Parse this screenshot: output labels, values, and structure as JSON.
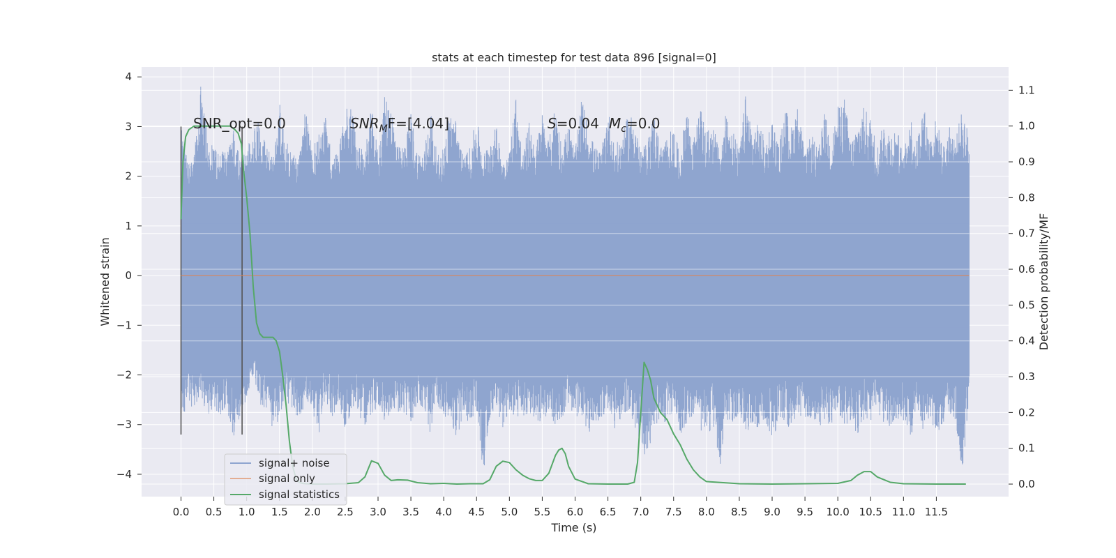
{
  "chart_data": {
    "type": "line",
    "title": "stats at each timestep for test data 896 [signal=0]",
    "xlabel": "Time (s)",
    "ylabel": "Whitened strain",
    "y2label": "Detection probability/MF",
    "xlim": [
      -0.6,
      12.6
    ],
    "ylim": [
      -4.45,
      4.2
    ],
    "y2lim": [
      -0.035,
      1.165
    ],
    "grid": true,
    "legend_position": "lower-left",
    "x_ticks": [
      "0.0",
      "0.5",
      "1.0",
      "1.5",
      "2.0",
      "2.5",
      "3.0",
      "3.5",
      "4.0",
      "4.5",
      "5.0",
      "5.5",
      "6.0",
      "6.5",
      "7.0",
      "7.5",
      "8.0",
      "8.5",
      "9.0",
      "9.5",
      "10.0",
      "10.5",
      "11.0",
      "11.5"
    ],
    "y_ticks": [
      "4",
      "3",
      "2",
      "1",
      "0",
      "−1",
      "−2",
      "−3",
      "−4"
    ],
    "y2_ticks": [
      "1.1",
      "1.0",
      "0.9",
      "0.8",
      "0.7",
      "0.6",
      "0.5",
      "0.4",
      "0.3",
      "0.2",
      "0.1",
      "0.0"
    ],
    "annotations": [
      "SNR_opt=0.0",
      "SNR",
      "M",
      "F=[4.04]",
      "S",
      "=0.04",
      "M",
      "c",
      "=0.0"
    ],
    "series": [
      {
        "name": "signal+ noise",
        "color": "#8fa5cf",
        "axis": "left",
        "t_start": 0.0,
        "t_end": 12.0,
        "envelope_upper": [
          3.0,
          2.3,
          2.4,
          3.85,
          2.9,
          2.6,
          2.5,
          2.6,
          3.0,
          2.4,
          2.5,
          3.0,
          3.2,
          2.6,
          2.4,
          3.5,
          2.7,
          2.5,
          2.4,
          3.4,
          2.6,
          2.9,
          3.2,
          2.4,
          2.5,
          3.5,
          3.4,
          2.6,
          2.5,
          3.4,
          2.5,
          3.6,
          3.5,
          2.6,
          2.6,
          3.3,
          2.5,
          2.5,
          3.4,
          2.4,
          2.6,
          3.4,
          3.1,
          2.4,
          2.6,
          3.2,
          2.4,
          2.8,
          3.0,
          2.4,
          2.5,
          3.7,
          2.4,
          3.1,
          2.6,
          3.3,
          2.7,
          3.5,
          2.6,
          3.1,
          2.5,
          3.6,
          3.0,
          2.6,
          2.5,
          3.4,
          2.6,
          2.8,
          3.2,
          3.3,
          2.5,
          2.7,
          3.3,
          2.6,
          2.8,
          3.0,
          2.4,
          3.5,
          2.7,
          3.4,
          2.9,
          3.1,
          2.5,
          3.3,
          3.0,
          2.5,
          3.7,
          2.9,
          3.1,
          2.7,
          3.2,
          2.6,
          3.4,
          3.0,
          3.5,
          2.4,
          2.9,
          2.5,
          3.3,
          2.7,
          3.4,
          3.6,
          2.7,
          3.1,
          3.4,
          3.2,
          2.6,
          3.1,
          2.9,
          3.0,
          2.4,
          3.3,
          2.7,
          3.5,
          2.8,
          3.2,
          2.6,
          3.0,
          2.8,
          3.4,
          2.8
        ],
        "envelope_lower": [
          -3.2,
          -2.5,
          -2.8,
          -2.3,
          -3.0,
          -2.6,
          -2.9,
          -2.7,
          -3.3,
          -2.8,
          -2.5,
          -2.0,
          -2.6,
          -2.8,
          -3.1,
          -2.9,
          -2.6,
          -2.7,
          -3.0,
          -2.5,
          -2.8,
          -3.2,
          -2.5,
          -2.9,
          -2.6,
          -3.1,
          -2.7,
          -2.8,
          -3.0,
          -2.9,
          -2.6,
          -3.0,
          -2.7,
          -2.8,
          -2.8,
          -3.0,
          -2.6,
          -2.9,
          -3.2,
          -2.6,
          -2.8,
          -3.0,
          -3.3,
          -2.8,
          -3.0,
          -2.7,
          -4.05,
          -2.9,
          -2.6,
          -3.1,
          -2.9,
          -2.8,
          -3.0,
          -2.8,
          -2.9,
          -3.0,
          -2.7,
          -3.1,
          -2.9,
          -2.6,
          -3.0,
          -2.8,
          -3.2,
          -3.0,
          -2.9,
          -2.7,
          -3.1,
          -2.9,
          -2.8,
          -3.0,
          -3.5,
          -3.8,
          -3.1,
          -2.9,
          -3.0,
          -2.7,
          -3.2,
          -3.0,
          -2.8,
          -3.1,
          -3.3,
          -3.0,
          -3.9,
          -2.9,
          -3.1,
          -2.8,
          -3.2,
          -3.0,
          -3.1,
          -2.9,
          -3.4,
          -3.0,
          -3.0,
          -3.1,
          -2.8,
          -3.0,
          -2.9,
          -3.2,
          -2.9,
          -3.1,
          -2.7,
          -3.1,
          -3.0,
          -3.2,
          -2.9,
          -3.0,
          -2.8,
          -3.0,
          -3.1,
          -2.9,
          -3.0,
          -3.3,
          -2.9,
          -3.1,
          -3.0,
          -3.2,
          -3.0,
          -2.8,
          -3.0,
          -4.05,
          -2.4
        ]
      },
      {
        "name": "signal only",
        "color": "#dd8452",
        "axis": "left",
        "x": [
          0.0,
          12.0
        ],
        "y": [
          0.0,
          0.0
        ]
      },
      {
        "name": "signal statistics",
        "color": "#55a868",
        "axis": "right",
        "x": [
          0.0,
          0.03,
          0.07,
          0.12,
          0.2,
          0.3,
          0.45,
          0.6,
          0.75,
          0.82,
          0.87,
          0.92,
          0.95,
          1.0,
          1.05,
          1.1,
          1.15,
          1.2,
          1.25,
          1.3,
          1.35,
          1.4,
          1.45,
          1.5,
          1.55,
          1.6,
          1.65,
          1.7,
          1.75,
          1.8,
          1.85,
          1.9,
          2.0,
          2.2,
          2.5,
          2.7,
          2.8,
          2.9,
          3.0,
          3.1,
          3.2,
          3.3,
          3.45,
          3.6,
          3.8,
          4.0,
          4.2,
          4.4,
          4.6,
          4.7,
          4.8,
          4.9,
          5.0,
          5.1,
          5.2,
          5.3,
          5.4,
          5.5,
          5.6,
          5.7,
          5.75,
          5.8,
          5.85,
          5.9,
          6.0,
          6.2,
          6.5,
          6.8,
          6.9,
          6.95,
          7.0,
          7.05,
          7.1,
          7.15,
          7.2,
          7.3,
          7.4,
          7.5,
          7.6,
          7.7,
          7.8,
          7.9,
          8.0,
          8.5,
          9.0,
          9.5,
          10.0,
          10.2,
          10.3,
          10.4,
          10.5,
          10.6,
          10.8,
          11.0,
          11.5,
          11.95
        ],
        "y": [
          0.74,
          0.9,
          0.97,
          0.99,
          1.0,
          1.0,
          1.0,
          1.0,
          1.0,
          0.99,
          0.98,
          0.95,
          0.88,
          0.8,
          0.7,
          0.55,
          0.45,
          0.42,
          0.41,
          0.41,
          0.41,
          0.41,
          0.4,
          0.37,
          0.3,
          0.22,
          0.12,
          0.05,
          0.015,
          0.005,
          0.002,
          0.001,
          0.0,
          0.0,
          0.001,
          0.004,
          0.02,
          0.065,
          0.058,
          0.025,
          0.01,
          0.012,
          0.011,
          0.004,
          0.001,
          0.002,
          0.0,
          0.001,
          0.001,
          0.012,
          0.05,
          0.064,
          0.06,
          0.04,
          0.025,
          0.015,
          0.01,
          0.01,
          0.03,
          0.08,
          0.095,
          0.1,
          0.085,
          0.05,
          0.014,
          0.001,
          0.0,
          0.0,
          0.005,
          0.06,
          0.2,
          0.34,
          0.32,
          0.29,
          0.24,
          0.2,
          0.18,
          0.14,
          0.11,
          0.07,
          0.04,
          0.02,
          0.007,
          0.001,
          0.0,
          0.001,
          0.002,
          0.01,
          0.025,
          0.035,
          0.035,
          0.02,
          0.005,
          0.001,
          0.0,
          0.0
        ]
      }
    ],
    "vertical_lines": [
      {
        "x": 0.0,
        "y_from": -3.2,
        "y_to": 3.0
      },
      {
        "x": 0.93,
        "y_from": -3.2,
        "y_to": 3.0
      }
    ]
  }
}
